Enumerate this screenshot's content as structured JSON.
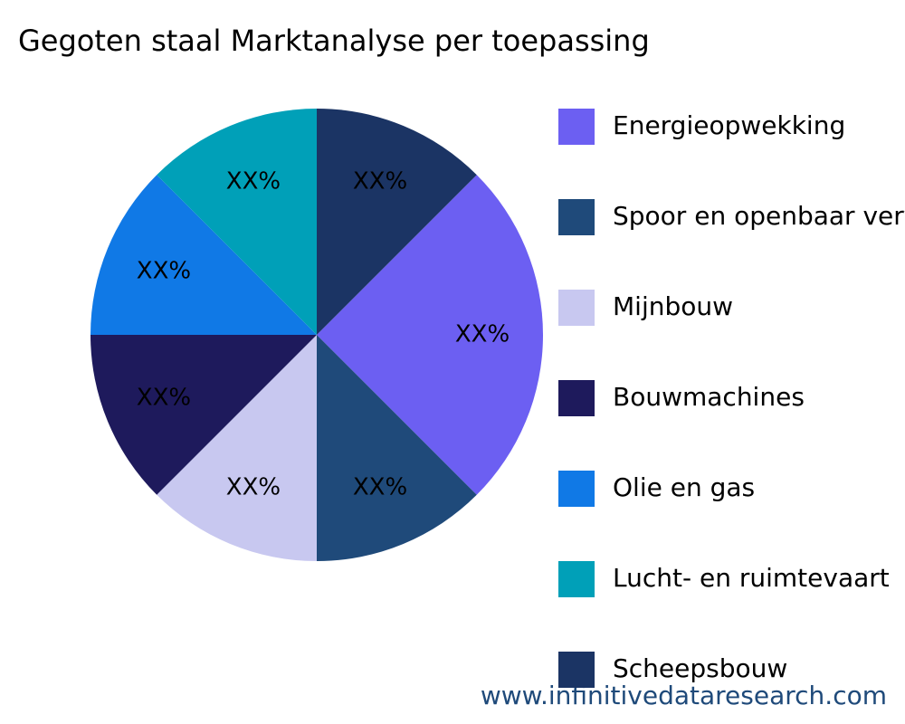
{
  "chart_data": {
    "type": "pie",
    "title": "Gegoten staal Marktanalyse per toepassing",
    "categories": [
      "Energieopwekking",
      "Spoor en openbaar vervoer",
      "Mijnbouw",
      "Bouwmachines",
      "Olie en gas",
      "Lucht- en ruimtevaart",
      "Scheepsbouw"
    ],
    "values": [
      25,
      12.5,
      12.5,
      12.5,
      12.5,
      12.5,
      12.5
    ],
    "value_labels": [
      "XX%",
      "XX%",
      "XX%",
      "XX%",
      "XX%",
      "XX%",
      "XX%"
    ],
    "colors": [
      "#6c5ff2",
      "#1f4a7a",
      "#c8c8f0",
      "#1e1a5c",
      "#1079e6",
      "#00a0b8",
      "#1b3464"
    ],
    "legend": "right",
    "watermark": "www.infinitivedataresearch.com"
  }
}
